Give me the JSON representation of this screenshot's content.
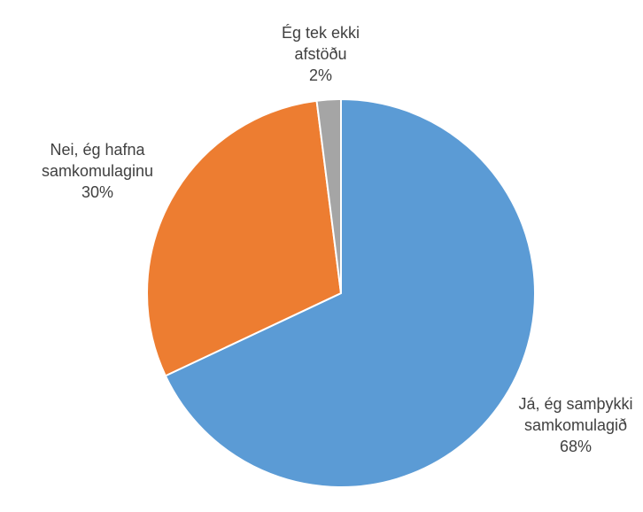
{
  "chart_data": {
    "type": "pie",
    "slices": [
      {
        "label_lines": [
          "Já, ég samþykki",
          "samkomulagið"
        ],
        "value": 68,
        "value_label": "68%",
        "color": "#5B9BD5"
      },
      {
        "label_lines": [
          "Nei, ég hafna",
          "samkomulaginu"
        ],
        "value": 30,
        "value_label": "30%",
        "color": "#ED7D31"
      },
      {
        "label_lines": [
          "Ég tek ekki",
          "afstöðu"
        ],
        "value": 2,
        "value_label": "2%",
        "color": "#A5A5A5"
      }
    ],
    "start": "12 o'clock",
    "direction": "clockwise",
    "legend": "none",
    "data_labels": "outside"
  }
}
